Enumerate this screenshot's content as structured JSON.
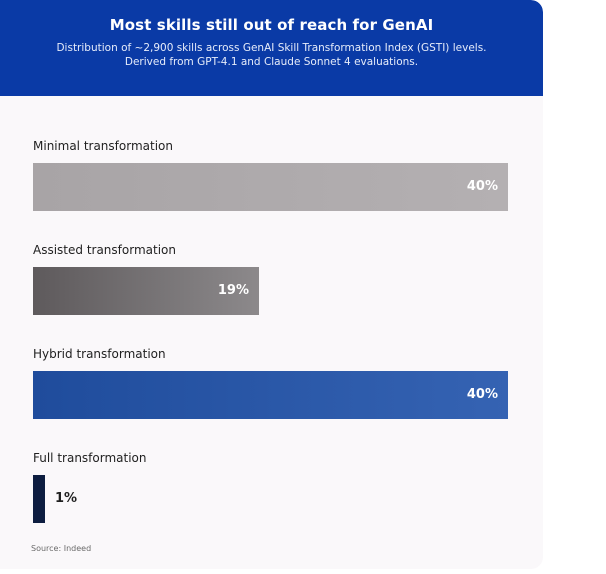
{
  "header": {
    "title": "Most skills still out of reach for GenAI",
    "subtitle_line1": "Distribution of ~2,900 skills across GenAI Skill Transformation Index (GSTI) levels.",
    "subtitle_line2": "Derived from GPT-4.1 and Claude Sonnet 4 evaluations."
  },
  "source": "Source: Indeed",
  "colors": {
    "header_bg": "#0a3aa6",
    "card_bg": "#faf8fa"
  },
  "chart_data": {
    "type": "bar",
    "orientation": "horizontal",
    "title": "Most skills still out of reach for GenAI",
    "subtitle": "Distribution of ~2,900 skills across GenAI Skill Transformation Index (GSTI) levels. Derived from GPT-4.1 and Claude Sonnet 4 evaluations.",
    "categories": [
      "Minimal transformation",
      "Assisted transformation",
      "Hybrid transformation",
      "Full transformation"
    ],
    "values": [
      40,
      19,
      40,
      1
    ],
    "value_labels": [
      "40%",
      "19%",
      "40%",
      "1%"
    ],
    "unit": "%",
    "xlim": [
      0,
      40
    ],
    "grid": false,
    "legend": "none",
    "bar_colors": [
      [
        "#a8a4a6",
        "#b4b0b2"
      ],
      [
        "#5e5a5c",
        "#8c898b"
      ],
      [
        "#1f4c9c",
        "#3563b3"
      ],
      [
        "#0d1d40",
        "#0d1d40"
      ]
    ]
  }
}
